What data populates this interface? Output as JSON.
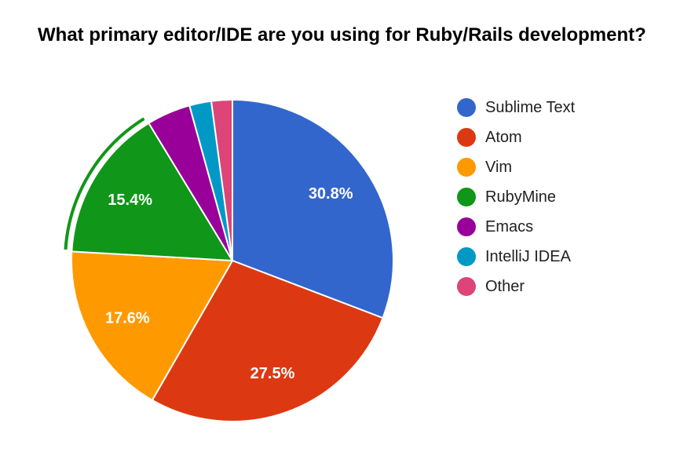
{
  "chart_data": {
    "type": "pie",
    "title": "What primary editor/IDE are you using for Ruby/Rails development?",
    "legend_position": "right",
    "slices": [
      {
        "label": "Sublime Text",
        "value": 30.8,
        "display": "30.8%",
        "color": "#3366CC"
      },
      {
        "label": "Atom",
        "value": 27.5,
        "display": "27.5%",
        "color": "#DC3912"
      },
      {
        "label": "Vim",
        "value": 17.6,
        "display": "17.6%",
        "color": "#FF9900"
      },
      {
        "label": "RubyMine",
        "value": 15.4,
        "display": "15.4%",
        "color": "#109618",
        "highlighted": true
      },
      {
        "label": "Emacs",
        "value": 4.4,
        "display": "",
        "color": "#990099"
      },
      {
        "label": "IntelliJ IDEA",
        "value": 2.2,
        "display": "",
        "color": "#0099C6"
      },
      {
        "label": "Other",
        "value": 2.1,
        "display": "",
        "color": "#DD4477"
      }
    ]
  }
}
